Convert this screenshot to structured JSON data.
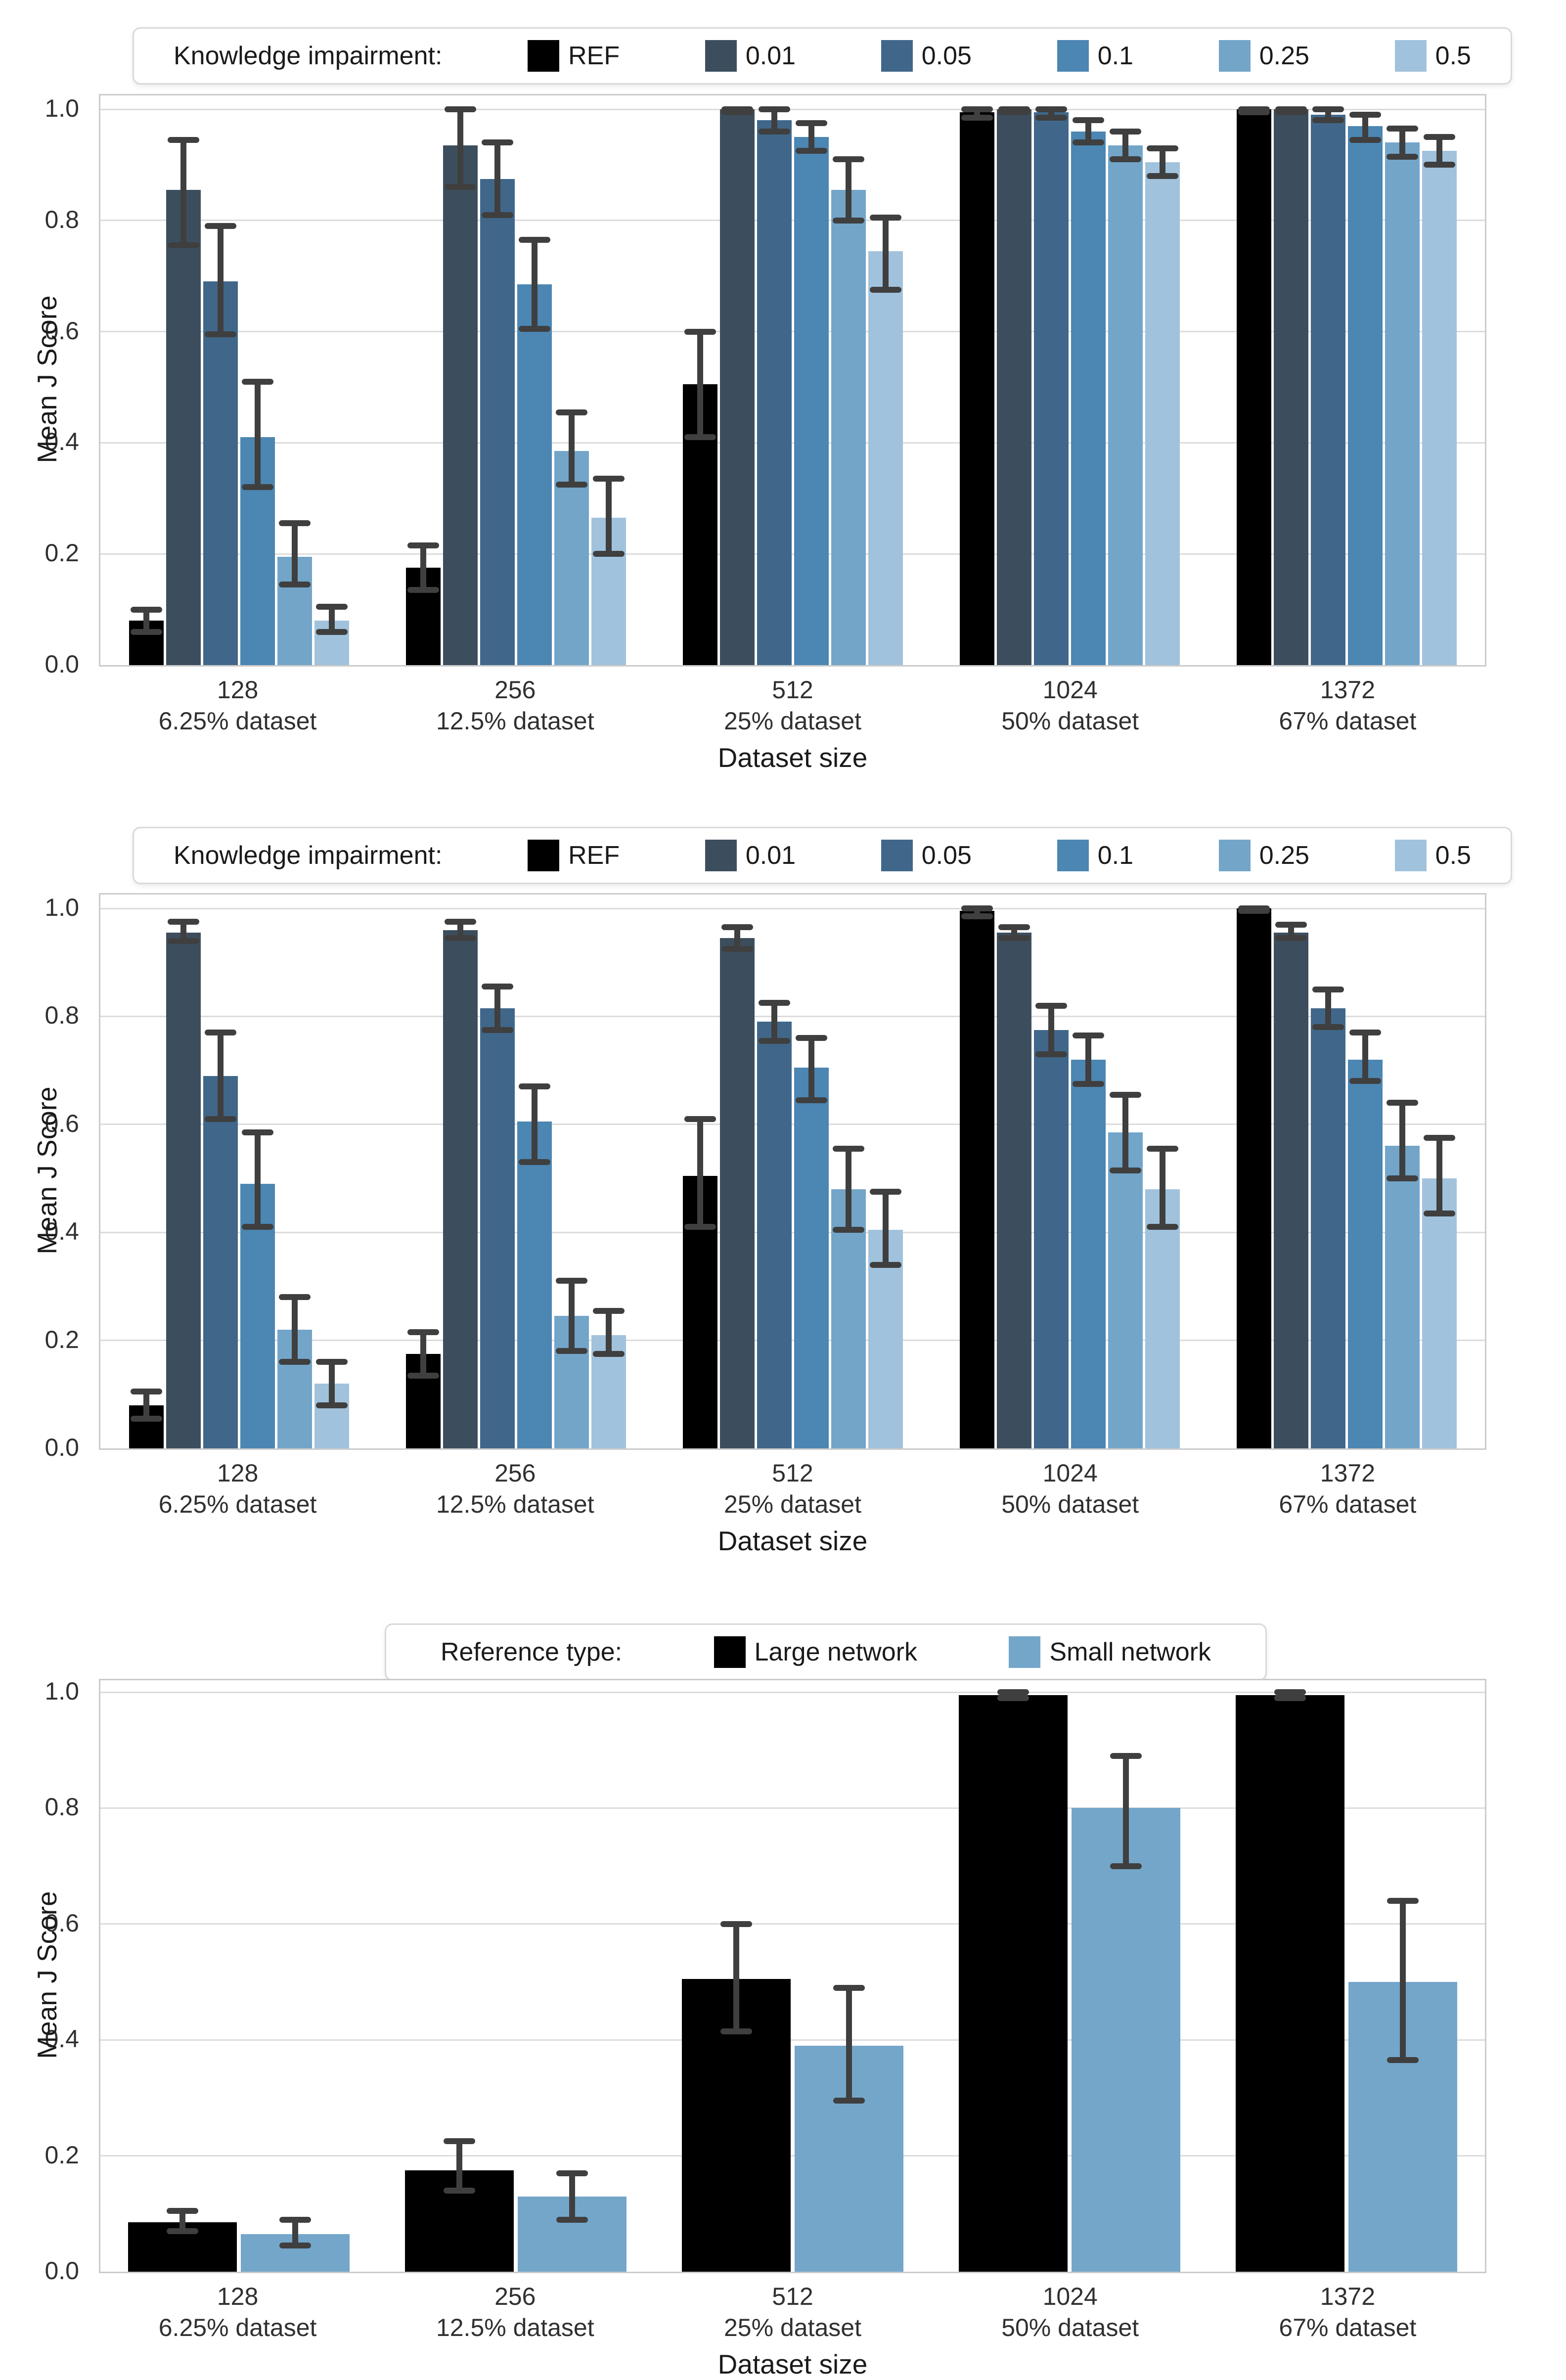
{
  "colors": {
    "ref_black": "#000000",
    "impair_001": "#3c4e5e",
    "impair_005": "#40678a",
    "impair_01": "#4c86b2",
    "impair_025": "#73a5c9",
    "impair_05": "#a1c2dc",
    "large_network": "#000000",
    "small_network": "#74a6ca",
    "error_bar": "#3f3f3f",
    "grid": "#dcdcdc",
    "plot_border": "#cbcbcb"
  },
  "axis": {
    "yticks": [
      "1.0",
      "0.8",
      "0.6",
      "0.4",
      "0.2",
      "0.0"
    ]
  },
  "categories": [
    {
      "size": "128",
      "subtitle": "6.25% dataset"
    },
    {
      "size": "256",
      "subtitle": "12.5% dataset"
    },
    {
      "size": "512",
      "subtitle": "25% dataset"
    },
    {
      "size": "1024",
      "subtitle": "50% dataset"
    },
    {
      "size": "1372",
      "subtitle": "67% dataset"
    }
  ],
  "chart_data": [
    {
      "type": "bar",
      "legend_title": "Knowledge impairment:",
      "legend_position": "top, full width",
      "xlabel": "Dataset size",
      "ylabel": "Mean J Score",
      "ylim": [
        0.0,
        1.03
      ],
      "grid": true,
      "categories": [
        "128 6.25% dataset",
        "256 12.5% dataset",
        "512 25% dataset",
        "1024 50% dataset",
        "1372 67% dataset"
      ],
      "series": [
        {
          "name": "REF",
          "color_key": "ref_black",
          "values": [
            0.08,
            0.175,
            0.505,
            0.995,
            1.0
          ],
          "err_lo": [
            0.06,
            0.135,
            0.41,
            0.985,
            0.995
          ],
          "err_hi": [
            0.1,
            0.215,
            0.6,
            1.0,
            1.0
          ]
        },
        {
          "name": "0.01",
          "color_key": "impair_001",
          "values": [
            0.855,
            0.935,
            1.0,
            1.0,
            1.0
          ],
          "err_lo": [
            0.755,
            0.86,
            0.995,
            0.995,
            0.995
          ],
          "err_hi": [
            0.945,
            1.0,
            1.0,
            1.0,
            1.0
          ]
        },
        {
          "name": "0.05",
          "color_key": "impair_005",
          "values": [
            0.69,
            0.875,
            0.98,
            0.995,
            0.99
          ],
          "err_lo": [
            0.595,
            0.81,
            0.96,
            0.985,
            0.98
          ],
          "err_hi": [
            0.79,
            0.94,
            1.0,
            1.0,
            1.0
          ]
        },
        {
          "name": "0.1",
          "color_key": "impair_01",
          "values": [
            0.41,
            0.685,
            0.95,
            0.96,
            0.97
          ],
          "err_lo": [
            0.32,
            0.605,
            0.925,
            0.94,
            0.945
          ],
          "err_hi": [
            0.51,
            0.765,
            0.975,
            0.98,
            0.99
          ]
        },
        {
          "name": "0.25",
          "color_key": "impair_025",
          "values": [
            0.195,
            0.385,
            0.855,
            0.935,
            0.94
          ],
          "err_lo": [
            0.145,
            0.325,
            0.8,
            0.91,
            0.915
          ],
          "err_hi": [
            0.255,
            0.455,
            0.91,
            0.96,
            0.965
          ]
        },
        {
          "name": "0.5",
          "color_key": "impair_05",
          "values": [
            0.08,
            0.265,
            0.745,
            0.905,
            0.925
          ],
          "err_lo": [
            0.06,
            0.2,
            0.675,
            0.88,
            0.9
          ],
          "err_hi": [
            0.105,
            0.335,
            0.805,
            0.93,
            0.95
          ]
        }
      ]
    },
    {
      "type": "bar",
      "legend_title": "Knowledge impairment:",
      "legend_position": "top, full width",
      "xlabel": "Dataset size",
      "ylabel": "Mean J Score",
      "ylim": [
        0.0,
        1.03
      ],
      "grid": true,
      "categories": [
        "128 6.25% dataset",
        "256 12.5% dataset",
        "512 25% dataset",
        "1024 50% dataset",
        "1372 67% dataset"
      ],
      "series": [
        {
          "name": "REF",
          "color_key": "ref_black",
          "values": [
            0.08,
            0.175,
            0.505,
            0.995,
            1.0
          ],
          "err_lo": [
            0.055,
            0.135,
            0.41,
            0.985,
            0.995
          ],
          "err_hi": [
            0.105,
            0.215,
            0.61,
            1.0,
            1.0
          ]
        },
        {
          "name": "0.01",
          "color_key": "impair_001",
          "values": [
            0.955,
            0.96,
            0.945,
            0.955,
            0.955
          ],
          "err_lo": [
            0.94,
            0.945,
            0.925,
            0.945,
            0.945
          ],
          "err_hi": [
            0.975,
            0.975,
            0.965,
            0.965,
            0.97
          ]
        },
        {
          "name": "0.05",
          "color_key": "impair_005",
          "values": [
            0.69,
            0.815,
            0.79,
            0.775,
            0.815
          ],
          "err_lo": [
            0.61,
            0.775,
            0.755,
            0.73,
            0.78
          ],
          "err_hi": [
            0.77,
            0.855,
            0.825,
            0.82,
            0.85
          ]
        },
        {
          "name": "0.1",
          "color_key": "impair_01",
          "values": [
            0.49,
            0.605,
            0.705,
            0.72,
            0.72
          ],
          "err_lo": [
            0.41,
            0.53,
            0.645,
            0.675,
            0.68
          ],
          "err_hi": [
            0.585,
            0.67,
            0.76,
            0.765,
            0.77
          ]
        },
        {
          "name": "0.25",
          "color_key": "impair_025",
          "values": [
            0.22,
            0.245,
            0.48,
            0.585,
            0.56
          ],
          "err_lo": [
            0.16,
            0.18,
            0.405,
            0.515,
            0.5
          ],
          "err_hi": [
            0.28,
            0.31,
            0.555,
            0.655,
            0.64
          ]
        },
        {
          "name": "0.5",
          "color_key": "impair_05",
          "values": [
            0.12,
            0.21,
            0.405,
            0.48,
            0.5
          ],
          "err_lo": [
            0.08,
            0.175,
            0.34,
            0.41,
            0.435
          ],
          "err_hi": [
            0.16,
            0.255,
            0.475,
            0.555,
            0.575
          ]
        }
      ]
    },
    {
      "type": "bar",
      "legend_title": "Reference type:",
      "legend_position": "top, centered",
      "xlabel": "Dataset size",
      "ylabel": "Mean J Score",
      "ylim": [
        0.0,
        1.03
      ],
      "grid": true,
      "categories": [
        "128 6.25% dataset",
        "256 12.5% dataset",
        "512 25% dataset",
        "1024 50% dataset",
        "1372 67% dataset"
      ],
      "series": [
        {
          "name": "Large network",
          "color_key": "large_network",
          "values": [
            0.085,
            0.175,
            0.505,
            0.995,
            0.995
          ],
          "err_lo": [
            0.07,
            0.14,
            0.415,
            0.99,
            0.99
          ],
          "err_hi": [
            0.105,
            0.225,
            0.6,
            1.0,
            1.0
          ]
        },
        {
          "name": "Small network",
          "color_key": "small_network",
          "values": [
            0.065,
            0.13,
            0.39,
            0.8,
            0.5
          ],
          "err_lo": [
            0.045,
            0.09,
            0.295,
            0.7,
            0.365
          ],
          "err_hi": [
            0.09,
            0.17,
            0.49,
            0.89,
            0.64
          ]
        }
      ]
    }
  ]
}
